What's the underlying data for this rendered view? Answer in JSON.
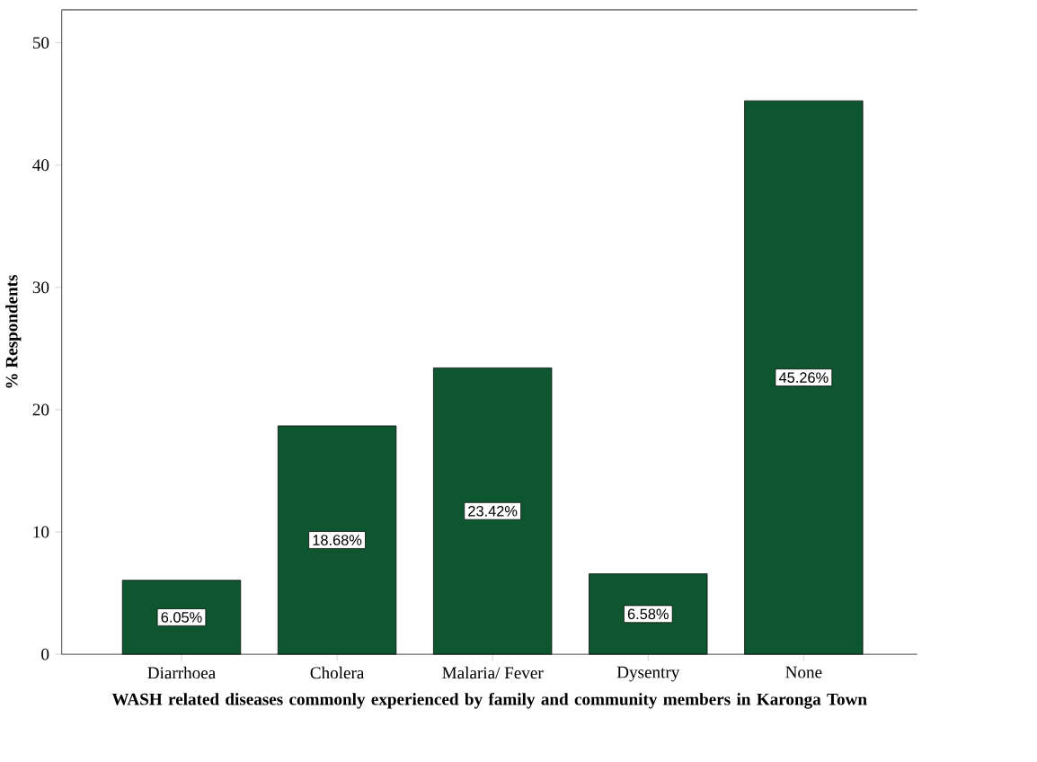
{
  "chart_data": {
    "type": "bar",
    "xlabel": "WASH related diseases commonly experienced by family and community members in Karonga Town",
    "ylabel": "% Respondents",
    "categories": [
      "Diarrhoea",
      "Cholera",
      "Malaria/ Fever",
      "Dysentry",
      "None"
    ],
    "values": [
      6.05,
      18.68,
      23.42,
      6.58,
      45.26
    ],
    "value_labels": [
      "6.05%",
      "18.68%",
      "23.42%",
      "6.58%",
      "45.26%"
    ],
    "color": "#0d5630",
    "ylim": [
      0,
      52.7
    ],
    "yticks": [
      0,
      10,
      20,
      30,
      40,
      50
    ]
  }
}
